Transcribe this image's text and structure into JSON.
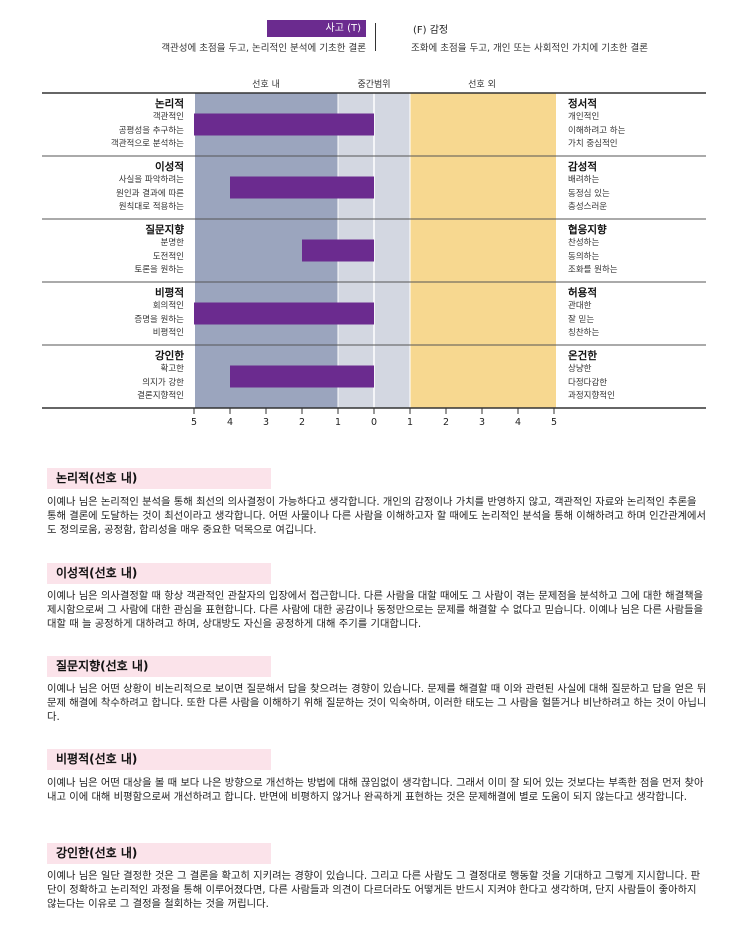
{
  "header": {
    "left_badge": "사고 (T)",
    "left_desc": "객관성에 초점을 두고, 논리적인 분석에 기초한 결론",
    "right_title": "(F) 감정",
    "right_desc": "조화에 초점을 두고, 개인 또는 사회적인 가치에 기초한 결론"
  },
  "zones": {
    "inner": "선호 내",
    "mid": "중간범위",
    "outer": "선호 외"
  },
  "colors": {
    "bar": "#6b2b8f",
    "zone_inner": "#9ba5be",
    "zone_mid": "#d3d7e1",
    "zone_outer": "#f7d890",
    "rule": "#444444",
    "heading_bg": "#fbe3ea"
  },
  "chart_data": {
    "type": "bar",
    "x_ticks": [
      "5",
      "4",
      "3",
      "2",
      "1",
      "0",
      "1",
      "2",
      "3",
      "4",
      "5"
    ],
    "rows": [
      {
        "left": {
          "title": "논리적",
          "items": [
            "객관적인",
            "공평성을 추구하는",
            "객관적으로 분석하는"
          ]
        },
        "right": {
          "title": "정서적",
          "items": [
            "개인적인",
            "이해하려고 하는",
            "가치 중심적인"
          ]
        },
        "value": 5
      },
      {
        "left": {
          "title": "이성적",
          "items": [
            "사실을 파악하려는",
            "원인과 결과에 따른",
            "원칙대로 적용하는"
          ]
        },
        "right": {
          "title": "감성적",
          "items": [
            "배려하는",
            "동정심 있는",
            "충성스러운"
          ]
        },
        "value": 4
      },
      {
        "left": {
          "title": "질문지향",
          "items": [
            "분명한",
            "도전적인",
            "토론을 원하는"
          ]
        },
        "right": {
          "title": "협응지향",
          "items": [
            "찬성하는",
            "동의하는",
            "조화를 원하는"
          ]
        },
        "value": 2
      },
      {
        "left": {
          "title": "비평적",
          "items": [
            "회의적인",
            "증명을 원하는",
            "비평적인"
          ]
        },
        "right": {
          "title": "허용적",
          "items": [
            "관대한",
            "잘 믿는",
            "칭찬하는"
          ]
        },
        "value": 5
      },
      {
        "left": {
          "title": "강인한",
          "items": [
            "확고한",
            "의지가 강한",
            "결론지향적인"
          ]
        },
        "right": {
          "title": "온건한",
          "items": [
            "상냥한",
            "다정다감한",
            "과정지향적인"
          ]
        },
        "value": 4
      }
    ]
  },
  "sections": [
    {
      "heading": "논리적(선호 내)",
      "body": "이예나 님은 논리적인 분석을 통해 최선의 의사결정이 가능하다고 생각합니다. 개인의 감정이나 가치를 반영하지 않고, 객관적인 자료와 논리적인 추론을 통해 결론에 도달하는 것이 최선이라고 생각합니다. 어떤 사물이나 다른 사람을 이해하고자 할 때에도 논리적인 분석을 통해 이해하려고 하며 인간관계에서도 정의로움, 공정함, 합리성을 매우 중요한 덕목으로 여깁니다."
    },
    {
      "heading": "이성적(선호 내)",
      "body": "이예나 님은 의사결정할 때 항상 객관적인 관찰자의 입장에서 접근합니다. 다른 사람을 대할 때에도 그 사람이 겪는 문제점을 분석하고 그에 대한 해결책을 제시함으로써 그 사람에 대한 관심을 표현합니다. 다른 사람에 대한 공감이나 동정만으로는 문제를 해결할 수 없다고 믿습니다. 이예나 님은 다른 사람들을 대할 때 늘 공정하게 대하려고 하며, 상대방도 자신을 공정하게 대해 주기를 기대합니다."
    },
    {
      "heading": "질문지향(선호 내)",
      "body": "이예나 님은 어떤 상황이 비논리적으로 보이면 질문해서 답을 찾으려는 경향이 있습니다. 문제를 해결할 때 이와 관련된 사실에 대해 질문하고 답을 얻은 뒤 문제 해결에 착수하려고 합니다. 또한 다른 사람을 이해하기 위해 질문하는 것이 익숙하며, 이러한 태도는 그 사람을 헐뜯거나 비난하려고 하는 것이 아닙니다."
    },
    {
      "heading": "비평적(선호 내)",
      "body": "이예나 님은 어떤 대상을 볼 때 보다 나은 방향으로 개선하는 방법에 대해 끊임없이 생각합니다. 그래서 이미 잘 되어 있는 것보다는 부족한 점을 먼저 찾아내고 이에 대해 비평함으로써 개선하려고 합니다. 반면에 비평하지 않거나 완곡하게 표현하는 것은 문제해결에 별로 도움이 되지 않는다고 생각합니다."
    },
    {
      "heading": "강인한(선호 내)",
      "body": "이예나 님은 일단 결정한 것은 그 결론을 확고히 지키려는 경향이 있습니다. 그리고 다른 사람도 그 결정대로 행동할 것을 기대하고 그렇게 지시합니다. 판단이 정확하고 논리적인 과정을 통해 이루어졌다면, 다른 사람들과 의견이 다르더라도 어떻게든 반드시 지켜야 한다고 생각하며, 단지 사람들이 좋아하지 않는다는 이유로 그 결정을 철회하는 것을 꺼립니다."
    }
  ]
}
